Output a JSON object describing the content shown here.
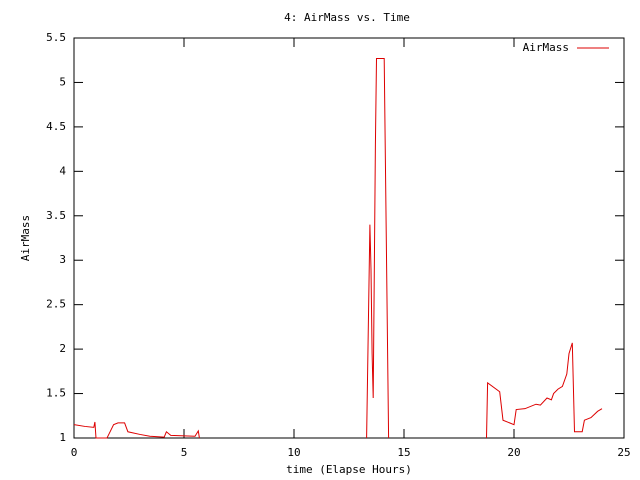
{
  "chart_data": {
    "type": "line",
    "title": "4: AirMass vs. Time",
    "x_label": "time (Elapse Hours)",
    "y_label": "AirMass",
    "x": [
      0,
      0.5,
      0.9,
      0.95,
      1.0,
      1.5,
      1.6,
      1.8,
      2.0,
      2.3,
      2.45,
      3.0,
      3.45,
      4.1,
      4.2,
      4.4,
      5.5,
      5.65,
      5.7,
      9.5,
      13.3,
      13.45,
      13.5,
      13.55,
      13.6,
      13.7,
      13.75,
      14.1,
      14.3,
      16.5,
      18.75,
      18.8,
      19.35,
      19.5,
      19.8,
      20.0,
      20.1,
      20.5,
      21.0,
      21.2,
      21.5,
      21.7,
      21.8,
      22.0,
      22.2,
      22.4,
      22.5,
      22.65,
      22.75,
      23.1,
      23.2,
      23.5,
      23.8,
      24.0
    ],
    "series": [
      {
        "name": "AirMass",
        "color": "#dd0000",
        "values": [
          1.15,
          1.13,
          1.12,
          1.18,
          1.0,
          1.0,
          1.05,
          1.15,
          1.17,
          1.17,
          1.07,
          1.04,
          1.02,
          1.01,
          1.07,
          1.03,
          1.02,
          1.08,
          1.0,
          null,
          1.0,
          3.4,
          2.9,
          1.95,
          1.45,
          4.3,
          5.27,
          5.27,
          1.0,
          null,
          1.0,
          1.62,
          1.52,
          1.2,
          1.17,
          1.15,
          1.32,
          1.33,
          1.38,
          1.37,
          1.45,
          1.43,
          1.5,
          1.55,
          1.58,
          1.72,
          1.95,
          2.07,
          1.07,
          1.07,
          1.2,
          1.23,
          1.3,
          1.33
        ]
      }
    ],
    "xlim": [
      0,
      25
    ],
    "xticks": [
      0,
      5,
      10,
      15,
      20,
      25
    ],
    "ylim": [
      1,
      5.5
    ],
    "yticks": [
      1,
      1.5,
      2,
      2.5,
      3,
      3.5,
      4,
      4.5,
      5,
      5.5
    ],
    "legend": "top-right"
  }
}
